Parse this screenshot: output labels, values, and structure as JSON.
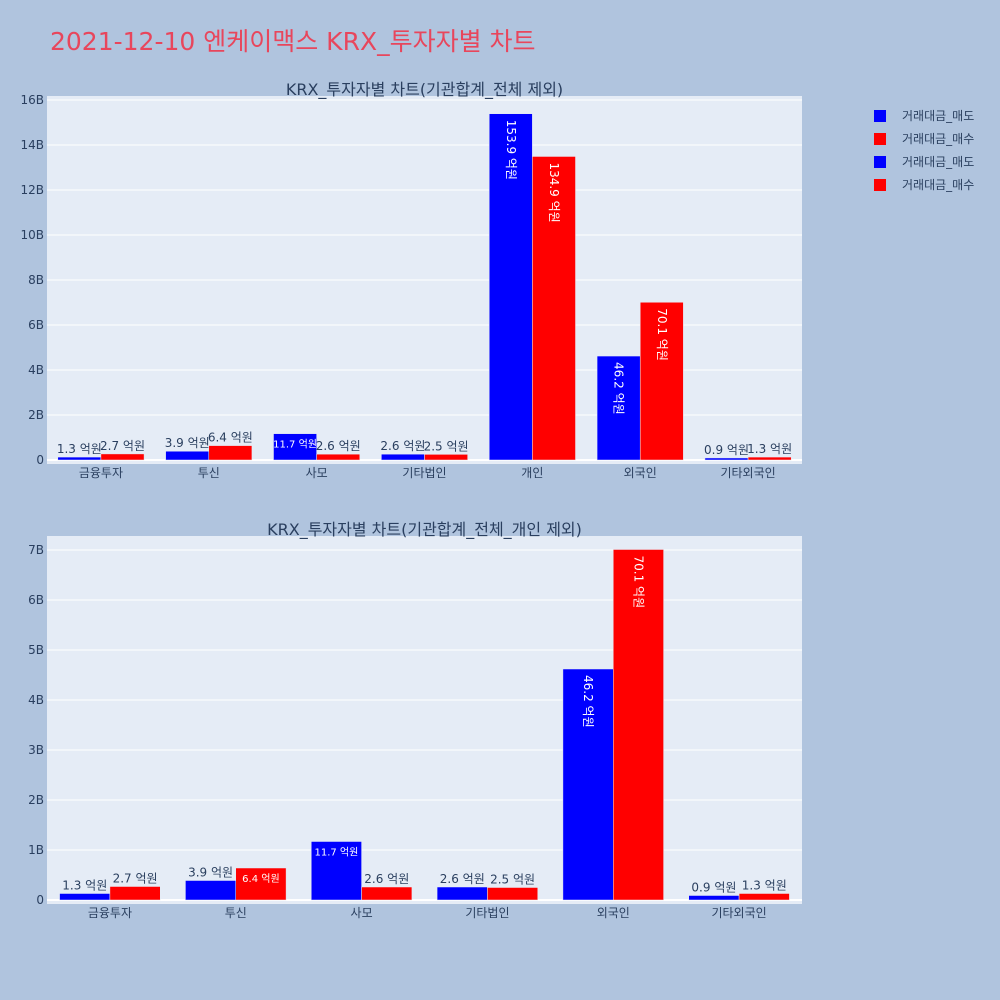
{
  "title": "2021-12-10 엔케이맥스 KRX_투자자별 차트",
  "colors": {
    "sell": "#0000ff",
    "buy": "#ff0000",
    "plot_bg": "#e5ecf6",
    "page_bg": "#b0c4de",
    "title": "#e8465c"
  },
  "legend": [
    {
      "label": "거래대금_매도",
      "color": "#0000ff"
    },
    {
      "label": "거래대금_매수",
      "color": "#ff0000"
    },
    {
      "label": "거래대금_매도",
      "color": "#0000ff"
    },
    {
      "label": "거래대금_매수",
      "color": "#ff0000"
    }
  ],
  "chart_data": [
    {
      "type": "bar",
      "title": "KRX_투자자별 차트(기관합계_전체 제외)",
      "categories": [
        "금융투자",
        "투신",
        "사모",
        "기타법인",
        "개인",
        "외국인",
        "기타외국인"
      ],
      "ylim": [
        0,
        16
      ],
      "yunit": "B",
      "yticks": [
        "0",
        "2B",
        "4B",
        "6B",
        "8B",
        "10B",
        "12B",
        "14B",
        "16B"
      ],
      "grid": true,
      "series": [
        {
          "name": "거래대금_매도",
          "color": "#0000ff",
          "values": [
            0.13,
            0.39,
            1.17,
            0.26,
            15.39,
            4.62,
            0.09
          ],
          "labels": [
            "1.3 억원",
            "3.9 억원",
            "11.7 억원",
            "2.6 억원",
            "153.9 억원",
            "46.2 억원",
            "0.9 억원"
          ]
        },
        {
          "name": "거래대금_매수",
          "color": "#ff0000",
          "values": [
            0.27,
            0.64,
            0.26,
            0.25,
            13.49,
            7.01,
            0.13
          ],
          "labels": [
            "2.7 억원",
            "6.4 억원",
            "2.6 억원",
            "2.5 억원",
            "134.9 억원",
            "70.1 억원",
            "1.3 억원"
          ]
        }
      ]
    },
    {
      "type": "bar",
      "title": "KRX_투자자별 차트(기관합계_전체_개인 제외)",
      "categories": [
        "금융투자",
        "투신",
        "사모",
        "기타법인",
        "외국인",
        "기타외국인"
      ],
      "ylim": [
        0,
        7.2
      ],
      "yunit": "B",
      "yticks": [
        "0",
        "1B",
        "2B",
        "3B",
        "4B",
        "5B",
        "6B",
        "7B"
      ],
      "grid": true,
      "series": [
        {
          "name": "거래대금_매도",
          "color": "#0000ff",
          "values": [
            0.13,
            0.39,
            1.17,
            0.26,
            4.62,
            0.09
          ],
          "labels": [
            "1.3 억원",
            "3.9 억원",
            "11.7 억원",
            "2.6 억원",
            "46.2 억원",
            "0.9 억원"
          ]
        },
        {
          "name": "거래대금_매수",
          "color": "#ff0000",
          "values": [
            0.27,
            0.64,
            0.26,
            0.25,
            7.01,
            0.13
          ],
          "labels": [
            "2.7 억원",
            "6.4 억원",
            "2.6 억원",
            "2.5 억원",
            "70.1 억원",
            "1.3 억원"
          ]
        }
      ]
    }
  ]
}
